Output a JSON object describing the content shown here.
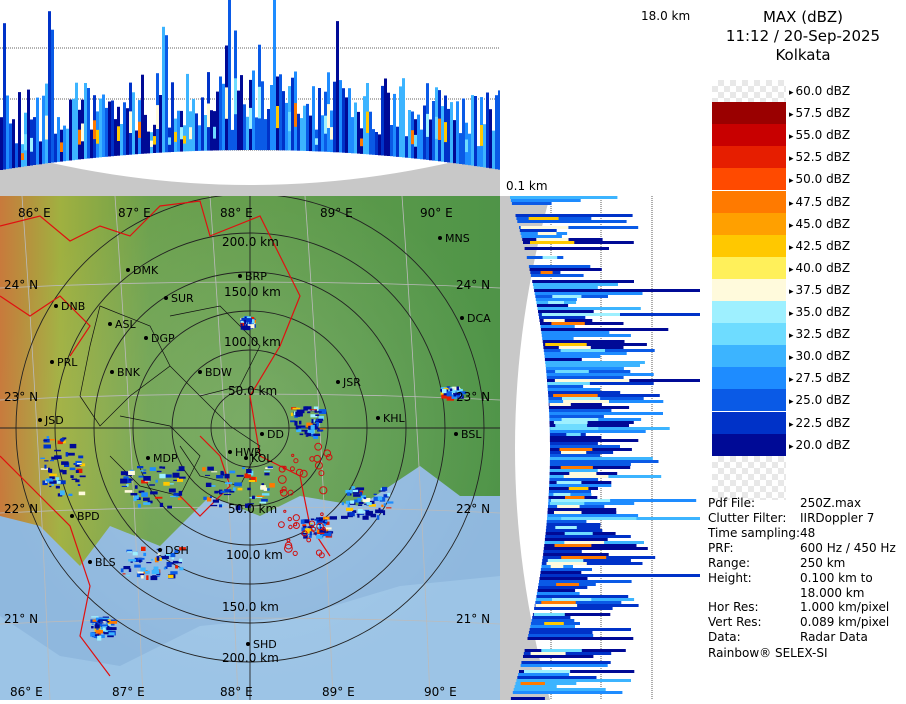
{
  "header": {
    "product": "MAX (dBZ)",
    "datetime": "11:12 / 20-Sep-2025",
    "station": "Kolkata"
  },
  "top_scale": {
    "max_height_label": "18.0 km",
    "min_height_label": "0.1 km"
  },
  "legend": {
    "items": [
      {
        "label": "60.0 dBZ",
        "color": ""
      },
      {
        "label": "57.5 dBZ",
        "color": "#9a0000"
      },
      {
        "label": "55.0 dBZ",
        "color": "#c80000"
      },
      {
        "label": "52.5 dBZ",
        "color": "#e61e00"
      },
      {
        "label": "50.0 dBZ",
        "color": "#ff4a00"
      },
      {
        "label": "47.5 dBZ",
        "color": "#ff7a00"
      },
      {
        "label": "45.0 dBZ",
        "color": "#ffa000"
      },
      {
        "label": "42.5 dBZ",
        "color": "#ffc800"
      },
      {
        "label": "40.0 dBZ",
        "color": "#fff05a"
      },
      {
        "label": "37.5 dBZ",
        "color": "#fffadc"
      },
      {
        "label": "35.0 dBZ",
        "color": "#9ef0ff"
      },
      {
        "label": "32.5 dBZ",
        "color": "#6edcff"
      },
      {
        "label": "30.0 dBZ",
        "color": "#3cb4ff"
      },
      {
        "label": "27.5 dBZ",
        "color": "#1e8cff"
      },
      {
        "label": "25.0 dBZ",
        "color": "#0a5ae6"
      },
      {
        "label": "22.5 dBZ",
        "color": "#0032c8"
      },
      {
        "label": "20.0 dBZ",
        "color": "#000a96"
      }
    ]
  },
  "info": [
    {
      "key": "Pdf File:",
      "value": "250Z.max"
    },
    {
      "key": "Clutter Filter:",
      "value": "IIRDoppler 7"
    },
    {
      "key": "Time sampling:",
      "value": "48"
    },
    {
      "key": "PRF:",
      "value": "600 Hz / 450 Hz"
    },
    {
      "key": "Range:",
      "value": "250 km"
    },
    {
      "key": "Height:",
      "value": "0.100 km to"
    },
    {
      "key": "",
      "value": "18.000 km"
    },
    {
      "key": "Hor Res:",
      "value": "1.000 km/pixel"
    },
    {
      "key": "Vert Res:",
      "value": "0.089 km/pixel"
    },
    {
      "key": "Data:",
      "value": "Radar Data"
    }
  ],
  "footer": "Rainbow® SELEX-SI",
  "map": {
    "longitudes": [
      "86° E",
      "87° E",
      "88° E",
      "89° E",
      "90° E"
    ],
    "bottom_longitudes": [
      "86° E",
      "87° E",
      "88° E",
      "89° E",
      "90° E"
    ],
    "latitudes_left": [
      "24° N",
      "23° N",
      "22° N",
      "21° N"
    ],
    "latitudes_right": [
      "24° N",
      "23° N",
      "22° N",
      "21° N"
    ],
    "ranges": [
      "50.0 km",
      "100.0 km",
      "150.0 km",
      "200.0 km"
    ],
    "ranges_south": [
      "50.0 km",
      "100.0 km",
      "150.0 km",
      "200.0 km"
    ],
    "places": [
      {
        "name": "MNS"
      },
      {
        "name": "DMK"
      },
      {
        "name": "BRP"
      },
      {
        "name": "DNB"
      },
      {
        "name": "SUR"
      },
      {
        "name": "ASL"
      },
      {
        "name": "DCA"
      },
      {
        "name": "DGP"
      },
      {
        "name": "PRL"
      },
      {
        "name": "BNK"
      },
      {
        "name": "BDW"
      },
      {
        "name": "JSR"
      },
      {
        "name": "KHL"
      },
      {
        "name": "BSL"
      },
      {
        "name": "JSD"
      },
      {
        "name": "MDP"
      },
      {
        "name": "HWR"
      },
      {
        "name": "DD"
      },
      {
        "name": "KOL"
      },
      {
        "name": "BPD"
      },
      {
        "name": "DSH"
      },
      {
        "name": "BLS"
      },
      {
        "name": "SHD"
      }
    ]
  },
  "colors": {
    "land": "#5a9a4a",
    "sea": "#8fb8de",
    "border": "#e01010",
    "panel_gray": "#c8c8c8"
  }
}
